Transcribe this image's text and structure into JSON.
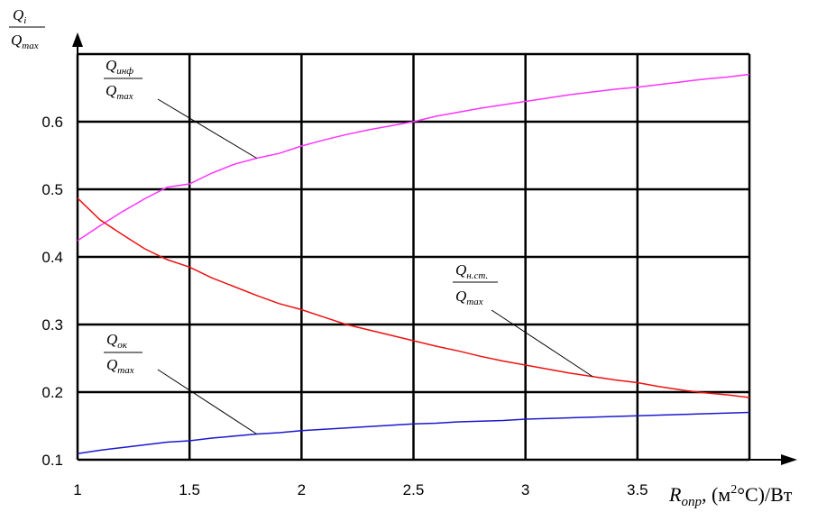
{
  "chart_data": {
    "type": "line",
    "xlabel": {
      "symbol": "R",
      "sub": "опр",
      "unit_pre": ", (м",
      "unit_sup": "2",
      "unit_post": "°С)/Вт"
    },
    "ylabel": {
      "num": "Q",
      "num_sub": "i",
      "den": "Q",
      "den_sub": "max"
    },
    "xlim": [
      1,
      4
    ],
    "ylim": [
      0.1,
      0.7
    ],
    "xticks": [
      "1",
      "1.5",
      "2",
      "2.5",
      "3",
      "3.5"
    ],
    "yticks": [
      "0.1",
      "0.2",
      "0.3",
      "0.4",
      "0.5",
      "0.6"
    ],
    "grid": true,
    "colors": {
      "inf": "#ff33ff",
      "nst": "#ee1111",
      "ok": "#1a1acc",
      "axis": "#000000"
    },
    "x": [
      1.0,
      1.1,
      1.2,
      1.3,
      1.4,
      1.5,
      1.6,
      1.7,
      1.8,
      1.9,
      2.0,
      2.1,
      2.2,
      2.3,
      2.4,
      2.5,
      2.6,
      2.7,
      2.8,
      2.9,
      3.0,
      3.1,
      3.2,
      3.3,
      3.4,
      3.5,
      3.6,
      3.7,
      3.8,
      3.9,
      4.0
    ],
    "series": [
      {
        "key": "inf",
        "label": {
          "num": "Q",
          "num_sub": "инф",
          "den": "Q",
          "den_sub": "max"
        },
        "values": [
          0.424,
          0.446,
          0.467,
          0.486,
          0.503,
          0.508,
          0.524,
          0.537,
          0.546,
          0.553,
          0.564,
          0.573,
          0.581,
          0.588,
          0.594,
          0.6,
          0.608,
          0.614,
          0.62,
          0.625,
          0.63,
          0.635,
          0.64,
          0.644,
          0.648,
          0.651,
          0.655,
          0.659,
          0.663,
          0.666,
          0.67
        ]
      },
      {
        "key": "nst",
        "label": {
          "num": "Q",
          "num_sub": "н.ст.",
          "den": "Q",
          "den_sub": "max"
        },
        "values": [
          0.487,
          0.455,
          0.433,
          0.412,
          0.396,
          0.385,
          0.369,
          0.356,
          0.343,
          0.331,
          0.322,
          0.311,
          0.3,
          0.292,
          0.284,
          0.276,
          0.268,
          0.261,
          0.253,
          0.246,
          0.24,
          0.234,
          0.228,
          0.223,
          0.218,
          0.214,
          0.208,
          0.203,
          0.199,
          0.196,
          0.192
        ]
      },
      {
        "key": "ok",
        "label": {
          "num": "Q",
          "num_sub": "ок",
          "den": "Q",
          "den_sub": "max"
        },
        "values": [
          0.109,
          0.114,
          0.118,
          0.122,
          0.126,
          0.128,
          0.132,
          0.135,
          0.138,
          0.14,
          0.143,
          0.145,
          0.147,
          0.149,
          0.151,
          0.153,
          0.154,
          0.156,
          0.157,
          0.158,
          0.16,
          0.161,
          0.162,
          0.163,
          0.164,
          0.165,
          0.166,
          0.167,
          0.168,
          0.169,
          0.17
        ]
      }
    ]
  }
}
